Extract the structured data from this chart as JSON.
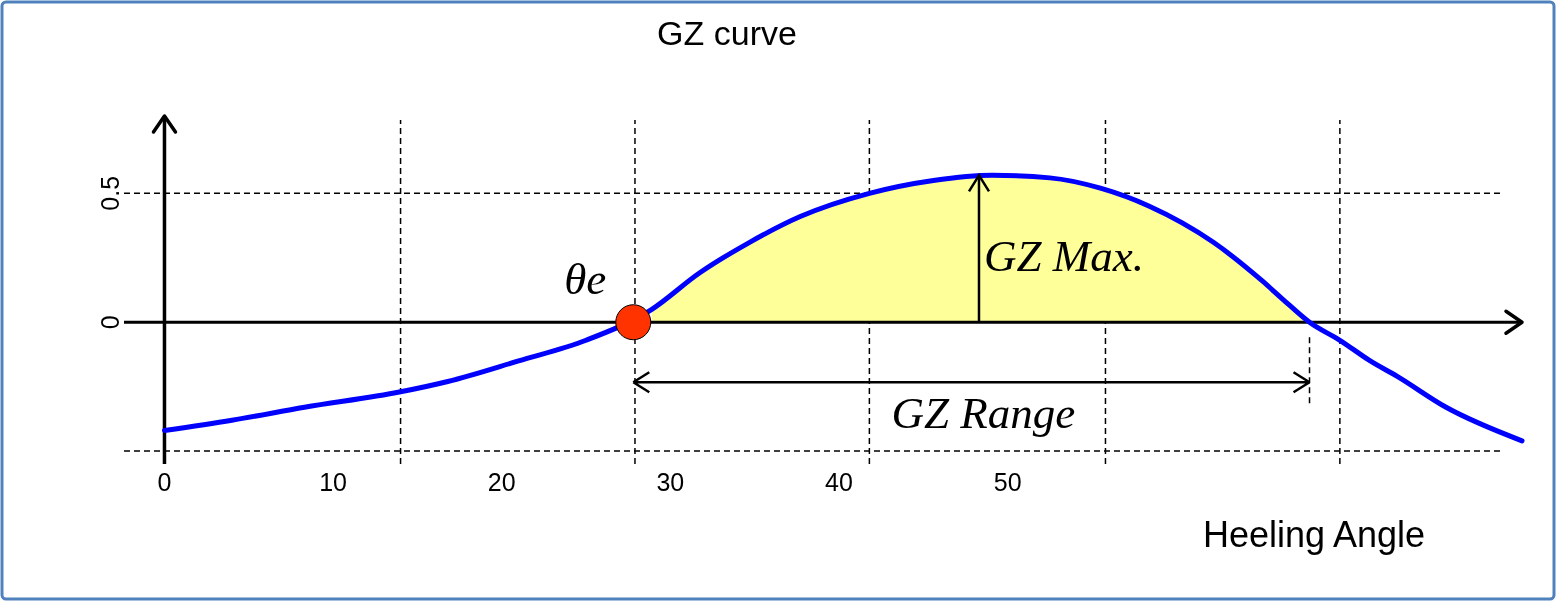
{
  "chart_data": {
    "type": "line",
    "title": "GZ curve",
    "xlabel": "Heeling Angle",
    "xlim": [
      -2.4,
      80.5
    ],
    "xticks": [
      0,
      10,
      20,
      30,
      40,
      50
    ],
    "ylim": [
      -0.55,
      0.8
    ],
    "yticks": [
      {
        "value": -0.5,
        "label": null
      },
      0,
      0.5
    ],
    "grid": "y",
    "series": [
      {
        "type": "area",
        "color": "#ffff99",
        "x": [
          28.9,
          31.7,
          34.7,
          37.7,
          41.8,
          45.6,
          49.1,
          52.5,
          55.5,
          58.4,
          62.2,
          65.1,
          66.3,
          67.9
        ],
        "values": [
          0.05,
          0.19,
          0.31,
          0.41,
          0.5,
          0.55,
          0.57,
          0.56,
          0.52,
          0.45,
          0.31,
          0.16,
          0.09,
          0
        ]
      },
      {
        "color": "#0000ff",
        "x": [
          0,
          4,
          8.3,
          14,
          16.8,
          21,
          25,
          28.9,
          31.7,
          34.7,
          37.7,
          41.8,
          45.6,
          49.1,
          52.5,
          55.5,
          58.4,
          62.2,
          65.1,
          66.3,
          67.9,
          69.7,
          71.5,
          73.1,
          76,
          80.5
        ],
        "values": [
          -0.42,
          -0.38,
          -0.33,
          -0.27,
          -0.23,
          -0.15,
          -0.07,
          0.05,
          0.19,
          0.31,
          0.41,
          0.5,
          0.55,
          0.57,
          0.56,
          0.52,
          0.45,
          0.31,
          0.16,
          0.09,
          0,
          -0.07,
          -0.15,
          -0.21,
          -0.33,
          -0.46
        ]
      },
      {
        "type": "scatter",
        "color": "#ff3300",
        "marker": "circle",
        "x": [
          27.8
        ],
        "values": [
          0
        ]
      }
    ],
    "ref_lines": [
      {
        "axis": "x",
        "value": 14.0,
        "line_style": "dashed",
        "color": "#000000"
      },
      {
        "axis": "x",
        "value": 27.9,
        "line_style": "dashed",
        "color": "#000000"
      },
      {
        "axis": "x",
        "value": 41.8,
        "line_style": "dashed",
        "color": "#000000"
      },
      {
        "axis": "x",
        "value": 55.8,
        "line_style": "dashed",
        "color": "#000000"
      },
      {
        "axis": "x",
        "value": 69.7,
        "line_style": "dashed",
        "color": "#000000"
      }
    ],
    "annotations": [
      {
        "text": "θe",
        "x": 27.8,
        "y": 0
      },
      {
        "text": "GZ Max.",
        "x": 48.3,
        "y": 0.57
      },
      "GZ Range"
    ]
  }
}
